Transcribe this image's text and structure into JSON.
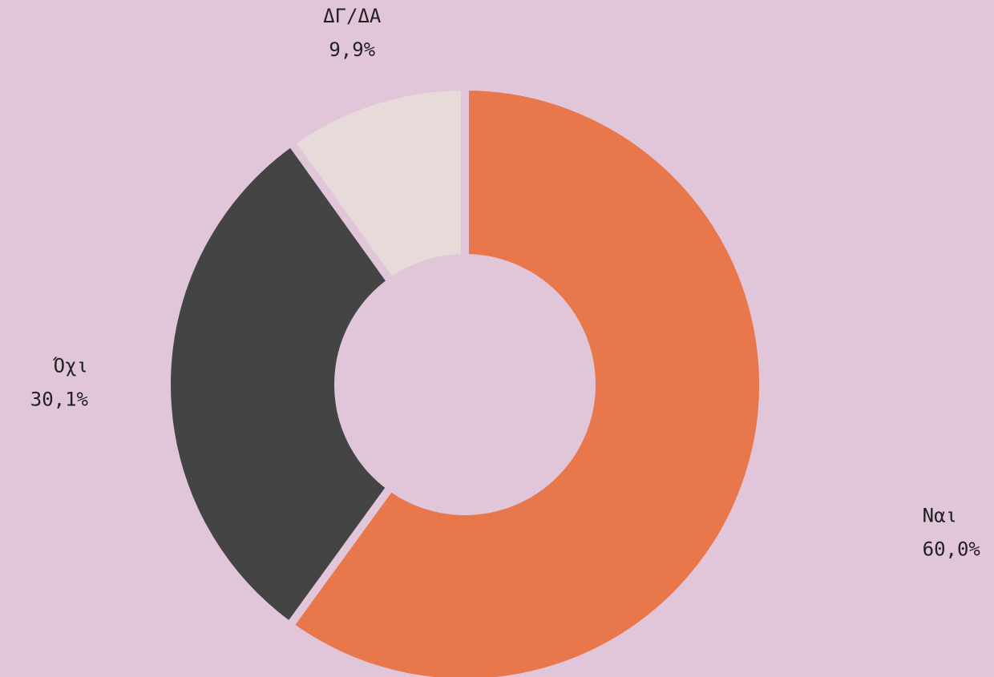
{
  "chart_data": {
    "type": "donut",
    "categories": [
      "Ναι",
      "Όχι",
      "ΔΓ/ΔΑ"
    ],
    "values": [
      60.0,
      30.1,
      9.9
    ],
    "value_labels": [
      "60,0%",
      "30,1%",
      "9,9%"
    ],
    "colors": [
      "#e8774b",
      "#444444",
      "#e6dbd8"
    ]
  }
}
